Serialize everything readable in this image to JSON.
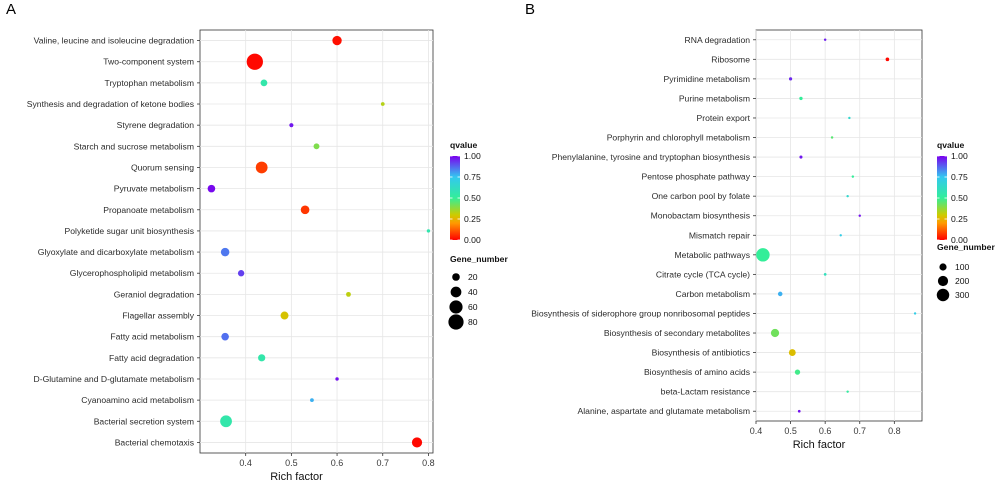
{
  "chart_data": [
    {
      "panel_label": "A",
      "type": "scatter",
      "xlabel": "Rich factor",
      "ylabel": "",
      "xlim": [
        0.3,
        0.81
      ],
      "x_ticks": [
        0.4,
        0.5,
        0.6,
        0.7,
        0.8
      ],
      "x_tick_labels": [
        "0.4",
        "0.5",
        "0.6",
        "0.7",
        "0.8"
      ],
      "grid": true,
      "categories": [
        "Valine, leucine and isoleucine degradation",
        "Two-component system",
        "Tryptophan metabolism",
        "Synthesis and degradation of ketone bodies",
        "Styrene degradation",
        "Starch and sucrose metabolism",
        "Quorum sensing",
        "Pyruvate metabolism",
        "Propanoate metabolism",
        "Polyketide sugar unit biosynthesis",
        "Glyoxylate and dicarboxylate metabolism",
        "Glycerophospholipid metabolism",
        "Geraniol degradation",
        "Flagellar assembly",
        "Fatty acid metabolism",
        "Fatty acid degradation",
        "D-Glutamine and D-glutamate metabolism",
        "Cyanoamino acid metabolism",
        "Bacterial secretion system",
        "Bacterial chemotaxis"
      ],
      "points": [
        {
          "x": 0.6,
          "qvalue": 0.02,
          "gene_number": 30
        },
        {
          "x": 0.42,
          "qvalue": 0.01,
          "gene_number": 92
        },
        {
          "x": 0.44,
          "qvalue": 0.55,
          "gene_number": 16
        },
        {
          "x": 0.7,
          "qvalue": 0.33,
          "gene_number": 5
        },
        {
          "x": 0.5,
          "qvalue": 0.97,
          "gene_number": 6
        },
        {
          "x": 0.555,
          "qvalue": 0.4,
          "gene_number": 12
        },
        {
          "x": 0.435,
          "qvalue": 0.08,
          "gene_number": 48
        },
        {
          "x": 0.325,
          "qvalue": 0.99,
          "gene_number": 20
        },
        {
          "x": 0.53,
          "qvalue": 0.07,
          "gene_number": 26
        },
        {
          "x": 0.8,
          "qvalue": 0.56,
          "gene_number": 4
        },
        {
          "x": 0.355,
          "qvalue": 0.85,
          "gene_number": 25
        },
        {
          "x": 0.39,
          "qvalue": 0.92,
          "gene_number": 14
        },
        {
          "x": 0.625,
          "qvalue": 0.32,
          "gene_number": 8
        },
        {
          "x": 0.485,
          "qvalue": 0.28,
          "gene_number": 22
        },
        {
          "x": 0.355,
          "qvalue": 0.86,
          "gene_number": 20
        },
        {
          "x": 0.435,
          "qvalue": 0.55,
          "gene_number": 18
        },
        {
          "x": 0.6,
          "qvalue": 0.98,
          "gene_number": 4
        },
        {
          "x": 0.545,
          "qvalue": 0.78,
          "gene_number": 5
        },
        {
          "x": 0.357,
          "qvalue": 0.55,
          "gene_number": 48
        },
        {
          "x": 0.775,
          "qvalue": 0.01,
          "gene_number": 36
        }
      ],
      "legend": {
        "color_title": "qvalue",
        "color_ticks": [
          "1.00",
          "0.75",
          "0.50",
          "0.25",
          "0.00"
        ],
        "size_title": "Gene_number",
        "size_entries": [
          {
            "label": "20",
            "value": 20
          },
          {
            "label": "40",
            "value": 40
          },
          {
            "label": "60",
            "value": 60
          },
          {
            "label": "80",
            "value": 80
          }
        ]
      }
    },
    {
      "panel_label": "B",
      "type": "scatter",
      "xlabel": "Rich factor",
      "ylabel": "",
      "xlim": [
        0.4,
        0.88
      ],
      "x_ticks": [
        0.4,
        0.5,
        0.6,
        0.7,
        0.8
      ],
      "x_tick_labels": [
        "0.4",
        "0.5",
        "0.6",
        "0.7",
        "0.8"
      ],
      "grid": true,
      "categories": [
        "RNA degradation",
        "Ribosome",
        "Pyrimidine metabolism",
        "Purine metabolism",
        "Protein export",
        "Porphyrin and chlorophyll metabolism",
        "Phenylalanine, tyrosine and tryptophan biosynthesis",
        "Pentose phosphate pathway",
        "One carbon pool by folate",
        "Monobactam biosynthesis",
        "Mismatch repair",
        "Metabolic pathways",
        "Citrate cycle (TCA cycle)",
        "Carbon metabolism",
        "Biosynthesis of siderophore group nonribosomal peptides",
        "Biosynthesis of secondary metabolites",
        "Biosynthesis of antibiotics",
        "Biosynthesis of amino acids",
        "beta-Lactam resistance",
        "Alanine, aspartate and glutamate metabolism"
      ],
      "points": [
        {
          "x": 0.6,
          "qvalue": 0.96,
          "gene_number": 12
        },
        {
          "x": 0.78,
          "qvalue": 0.01,
          "gene_number": 25
        },
        {
          "x": 0.5,
          "qvalue": 0.95,
          "gene_number": 20
        },
        {
          "x": 0.53,
          "qvalue": 0.5,
          "gene_number": 22
        },
        {
          "x": 0.67,
          "qvalue": 0.65,
          "gene_number": 10
        },
        {
          "x": 0.62,
          "qvalue": 0.45,
          "gene_number": 12
        },
        {
          "x": 0.53,
          "qvalue": 0.97,
          "gene_number": 18
        },
        {
          "x": 0.68,
          "qvalue": 0.5,
          "gene_number": 10
        },
        {
          "x": 0.665,
          "qvalue": 0.65,
          "gene_number": 10
        },
        {
          "x": 0.7,
          "qvalue": 0.98,
          "gene_number": 8
        },
        {
          "x": 0.645,
          "qvalue": 0.72,
          "gene_number": 10
        },
        {
          "x": 0.42,
          "qvalue": 0.5,
          "gene_number": 350
        },
        {
          "x": 0.6,
          "qvalue": 0.6,
          "gene_number": 14
        },
        {
          "x": 0.47,
          "qvalue": 0.78,
          "gene_number": 40
        },
        {
          "x": 0.86,
          "qvalue": 0.72,
          "gene_number": 4
        },
        {
          "x": 0.455,
          "qvalue": 0.42,
          "gene_number": 130
        },
        {
          "x": 0.505,
          "qvalue": 0.27,
          "gene_number": 90
        },
        {
          "x": 0.52,
          "qvalue": 0.48,
          "gene_number": 55
        },
        {
          "x": 0.665,
          "qvalue": 0.52,
          "gene_number": 8
        },
        {
          "x": 0.525,
          "qvalue": 0.98,
          "gene_number": 14
        }
      ],
      "legend": {
        "color_title": "qvalue",
        "color_ticks": [
          "1.00",
          "0.75",
          "0.50",
          "0.25",
          "0.00"
        ],
        "size_title": "Gene_number",
        "size_entries": [
          {
            "label": "100",
            "value": 100
          },
          {
            "label": "200",
            "value": 200
          },
          {
            "label": "300",
            "value": 300
          }
        ]
      }
    }
  ]
}
